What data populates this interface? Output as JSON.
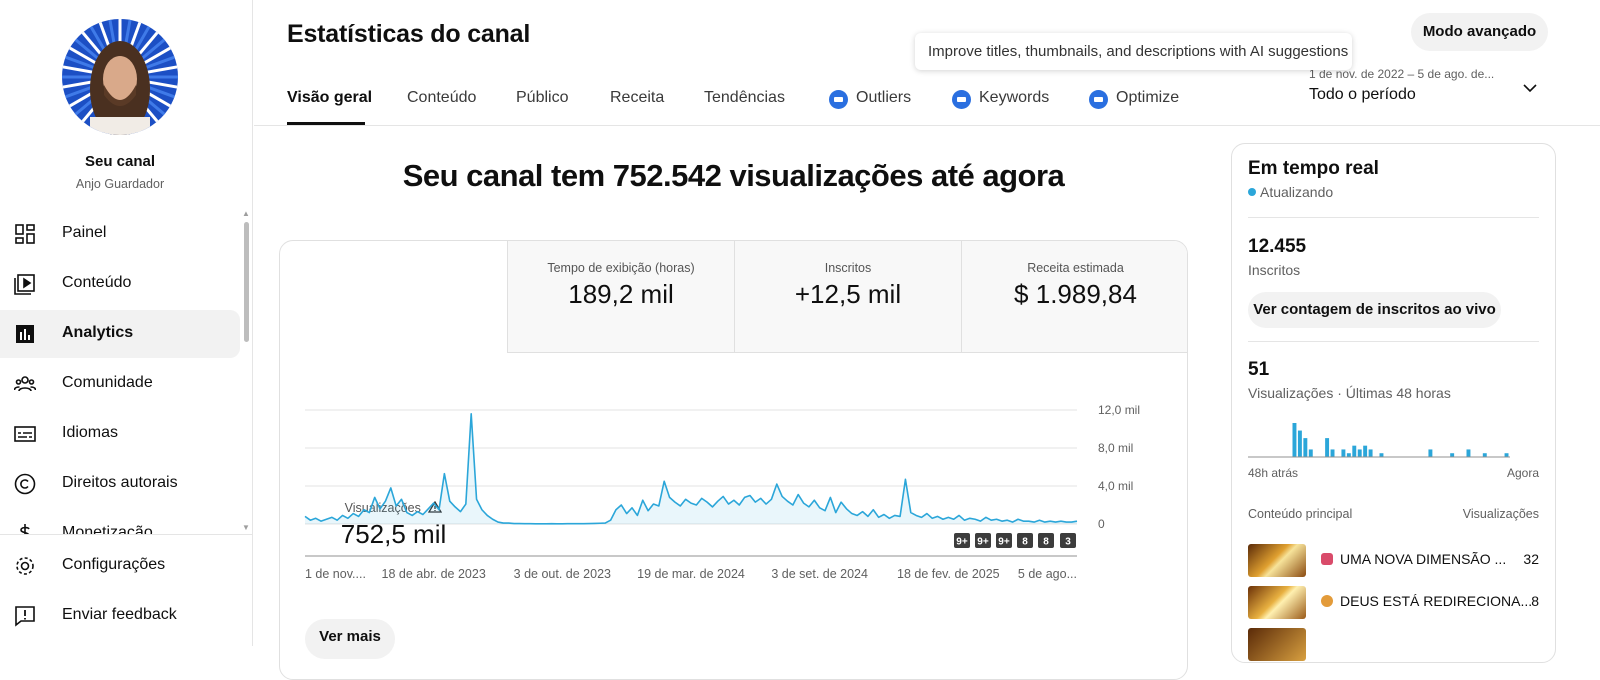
{
  "sidebar": {
    "channel_title": "Seu canal",
    "channel_handle": "Anjo Guardador",
    "nav": [
      "Painel",
      "Conteúdo",
      "Analytics",
      "Comunidade",
      "Idiomas",
      "Direitos autorais",
      "Monetização"
    ],
    "footer": [
      "Configurações",
      "Enviar feedback"
    ]
  },
  "header": {
    "title": "Estatísticas do canal",
    "advanced_button": "Modo avançado",
    "tooltip": "Improve titles, thumbnails, and descriptions with AI suggestions",
    "tabs": [
      "Visão geral",
      "Conteúdo",
      "Público",
      "Receita",
      "Tendências",
      "Outliers",
      "Keywords",
      "Optimize"
    ],
    "date_range": "1 de nov. de 2022 – 5 de ago. de...",
    "period": "Todo o período"
  },
  "summary": {
    "headline": "Seu canal tem 752.542 visualizações até agora",
    "metrics": [
      {
        "label": "Visualizações",
        "value": "752,5 mil"
      },
      {
        "label": "Tempo de exibição (horas)",
        "value": "189,2 mil"
      },
      {
        "label": "Inscritos",
        "value": "+12,5 mil"
      },
      {
        "label": "Receita estimada",
        "value": "$ 1.989,84"
      }
    ],
    "badges": [
      "9+",
      "9+",
      "9+",
      "8",
      "8",
      "3"
    ],
    "more_button": "Ver mais"
  },
  "chart_data": {
    "type": "line",
    "color": "#2ba6d9",
    "grid": true,
    "xlim": [
      0,
      144
    ],
    "xticks": [
      {
        "value": 0,
        "label": "1 de nov...."
      },
      {
        "value": 24,
        "label": "18 de abr. de 2023"
      },
      {
        "value": 48,
        "label": "3 de out. de 2023"
      },
      {
        "value": 72,
        "label": "19 de mar. de 2024"
      },
      {
        "value": 96,
        "label": "3 de set. de 2024"
      },
      {
        "value": 120,
        "label": "18 de fev. de 2025"
      },
      {
        "value": 144,
        "label": "5 de ago..."
      }
    ],
    "ylim": [
      0,
      12000
    ],
    "yticks": [
      0,
      {
        "value": 4000,
        "label": "4,0 mil"
      },
      {
        "value": 8000,
        "label": "8,0 mil"
      },
      {
        "value": 12000,
        "label": "12,0 mil"
      }
    ],
    "values": [
      800,
      400,
      600,
      300,
      500,
      700,
      400,
      900,
      600,
      1100,
      800,
      1500,
      1200,
      2800,
      1600,
      2400,
      3800,
      1900,
      2600,
      1200,
      900,
      1300,
      1000,
      1600,
      2200,
      1500,
      5300,
      2400,
      1800,
      1300,
      2100,
      11600,
      2600,
      1500,
      900,
      500,
      200,
      100,
      100,
      50,
      50,
      30,
      30,
      20,
      20,
      20,
      30,
      20,
      20,
      30,
      30,
      40,
      30,
      50,
      60,
      80,
      100,
      400,
      1500,
      2000,
      1100,
      1700,
      900,
      2500,
      1400,
      2100,
      1900,
      4500,
      2800,
      2300,
      1900,
      2600,
      2200,
      2000,
      2700,
      2300,
      1800,
      2400,
      2900,
      2100,
      2500,
      2000,
      2800,
      3000,
      2300,
      2700,
      2100,
      2600,
      4200,
      2900,
      2400,
      2000,
      3100,
      2200,
      1800,
      2500,
      1700,
      1400,
      2800,
      1200,
      2300,
      1600,
      1100,
      900,
      1300,
      800,
      1500,
      700,
      1000,
      600,
      900,
      800,
      4700,
      1200,
      900,
      700,
      1100,
      600,
      800,
      500,
      700,
      500,
      900,
      400,
      600,
      500,
      300,
      700,
      400,
      500,
      300,
      400,
      200,
      500,
      300,
      300,
      200,
      400,
      200,
      300,
      200,
      300,
      200,
      200,
      300
    ]
  },
  "realtime": {
    "title": "Em tempo real",
    "status": "Atualizando",
    "subscribers": "12.455",
    "subscribers_label": "Inscritos",
    "live_button": "Ver contagem de inscritos ao vivo",
    "views": "51",
    "views_label": "Visualizações · Últimas 48 horas",
    "chart": {
      "type": "bar",
      "color": "#2ba6d9",
      "values": [
        0,
        0,
        0,
        0,
        0,
        0,
        0,
        0,
        9,
        7,
        5,
        2,
        0,
        0,
        5,
        2,
        0,
        2,
        1,
        3,
        2,
        3,
        2,
        0,
        1,
        0,
        0,
        0,
        0,
        0,
        0,
        0,
        0,
        2,
        0,
        0,
        0,
        1,
        0,
        0,
        2,
        0,
        0,
        1,
        0,
        0,
        0,
        1
      ]
    },
    "x_start": "48h atrás",
    "x_end": "Agora",
    "top_content_label": "Conteúdo principal",
    "top_views_label": "Visualizações",
    "videos": [
      {
        "title": "UMA NOVA DIMENSÃO ...",
        "views": 32
      },
      {
        "title": "DEUS ESTÁ REDIRECIONA...",
        "views": 8
      }
    ]
  }
}
